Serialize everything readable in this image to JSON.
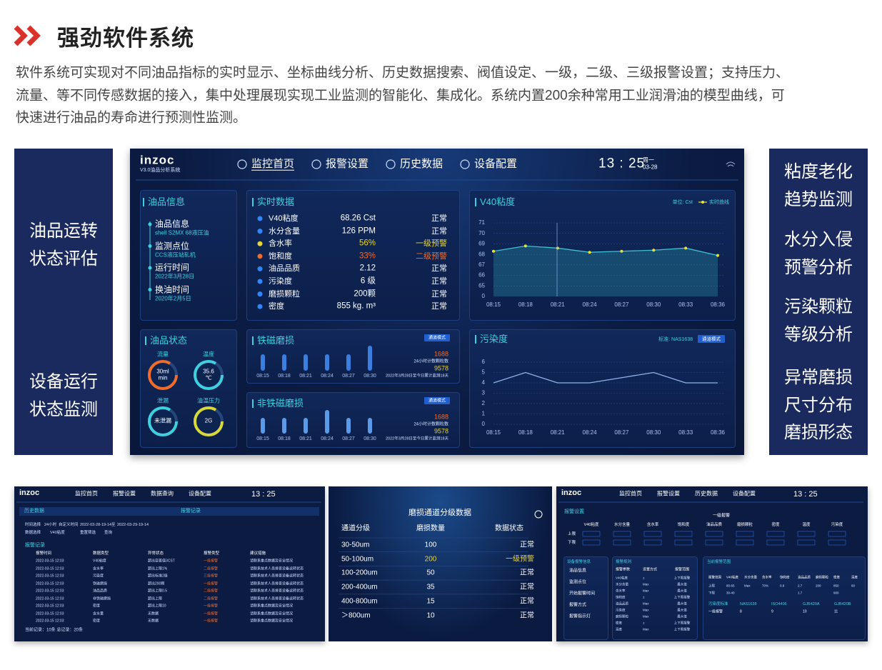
{
  "header": {
    "title": "强劲软件系统",
    "description": [
      "软件系统可实现对不同油品指标的实时显示、坐标曲线分析、历史数据搜索、阀值设定、一级，二级、三级报警设置；支持压力、",
      "流量、等不同传感数据的接入，集中处理展现实现工业监测的智能化、集成化。系统内置200余种常用工业润滑油的模型曲线，可",
      "快速进行油品的寿命进行预测性监测。"
    ]
  },
  "left_panel": {
    "items": [
      [
        "油品运转",
        "状态评估"
      ],
      [
        "设备运行",
        "状态监测"
      ]
    ]
  },
  "right_panel": {
    "items": [
      [
        "粘度老化",
        "趋势监测"
      ],
      [
        "水分入侵",
        "预警分析"
      ],
      [
        "污染颗粒",
        "等级分析"
      ],
      [
        "异常磨损",
        "尺寸分布",
        "磨损形态"
      ]
    ]
  },
  "dashboard": {
    "logo": "inzoc",
    "version": "V3.0油品分析系统",
    "nav": [
      "监控首页",
      "报警设置",
      "历史数据",
      "设备配置"
    ],
    "time": "13 : 25",
    "weekday": "周一",
    "date": "03-28",
    "oil_info": {
      "title": "油品信息",
      "entries": [
        {
          "label": "油品信息",
          "value": "shell S2MX 68液压油"
        },
        {
          "label": "监测点位",
          "value": "CCS液压站轧机"
        },
        {
          "label": "运行时间",
          "value": "2022年3月28日"
        },
        {
          "label": "换油时间",
          "value": "2020年2月5日"
        }
      ]
    },
    "realtime": {
      "title": "实时数据",
      "rows": [
        {
          "name": "V40粘度",
          "value": "68.26 Cst",
          "status": "正常",
          "dot_color": "#2f86ff",
          "text_color": "#ffffff"
        },
        {
          "name": "水分含量",
          "value": "126 PPM",
          "status": "正常",
          "dot_color": "#2f86ff",
          "text_color": "#ffffff"
        },
        {
          "name": "含水率",
          "value": "56%",
          "status": "一级预警",
          "dot_color": "#e6d33a",
          "text_color": "#e6d33a"
        },
        {
          "name": "饱和度",
          "value": "33%",
          "status": "二级预警",
          "dot_color": "#f26b2a",
          "text_color": "#f26b2a"
        },
        {
          "name": "油品品质",
          "value": "2.12",
          "status": "正常",
          "dot_color": "#2f86ff",
          "text_color": "#ffffff"
        },
        {
          "name": "污染度",
          "value": "6 级",
          "status": "正常",
          "dot_color": "#2f86ff",
          "text_color": "#ffffff"
        },
        {
          "name": "磨损颗粒",
          "value": "200颗",
          "status": "正常",
          "dot_color": "#2f86ff",
          "text_color": "#ffffff"
        },
        {
          "name": "密度",
          "value": "855 kg. m³",
          "status": "正常",
          "dot_color": "#2f86ff",
          "text_color": "#ffffff"
        }
      ]
    },
    "oil_status": {
      "title": "油品状态",
      "gauges": [
        {
          "label": "流量",
          "value": [
            "30ml",
            "min"
          ],
          "color": "#f26b2a"
        },
        {
          "label": "温度",
          "value": [
            "35.6",
            "℃"
          ],
          "color": "#3fd0e0"
        },
        {
          "label": "泄漏",
          "value": [
            "未泄漏"
          ],
          "color": "#3fd0e0"
        },
        {
          "label": "油温压力",
          "value": [
            "2G"
          ],
          "color": "#d8d83a"
        }
      ]
    }
  },
  "chart_data": [
    {
      "type": "line",
      "title": "V40粘度",
      "unit_label": "单位: Cst",
      "x": [
        "08:15",
        "08:18",
        "08:21",
        "08:24",
        "08:27",
        "08:30",
        "08:33",
        "08:36"
      ],
      "series": [
        {
          "name": "实时曲线",
          "color": "#e8e33a",
          "values": [
            68.3,
            68.8,
            68.6,
            68.2,
            68.3,
            68.4,
            68.6,
            67.9
          ]
        }
      ],
      "ylim": [
        64,
        71
      ],
      "yticks": [
        65,
        66,
        67,
        68,
        69,
        70,
        71
      ],
      "y_origin_label": "0",
      "grid": true
    },
    {
      "type": "line",
      "title": "污染度",
      "standard": "标准: NAS1638",
      "badge": "通道模式",
      "x": [
        "08:15",
        "08:18",
        "08:21",
        "08:24",
        "08:27",
        "08:30",
        "08:33",
        "08:36"
      ],
      "color": "#8fb3e6",
      "values": [
        4,
        5,
        4,
        4,
        4.5,
        5,
        4,
        4
      ],
      "ylim": [
        0,
        6
      ],
      "yticks": [
        0,
        1,
        2,
        3,
        4,
        5,
        6
      ],
      "grid": true
    },
    {
      "type": "bar",
      "title": "铁磁磨损",
      "badge": "通道模式",
      "categories": [
        "08:15",
        "08:18",
        "08:21",
        "08:24",
        "08:27",
        "08:30"
      ],
      "values": [
        23,
        23,
        23,
        23,
        23,
        35
      ],
      "color": "#3a7fe0",
      "count": 1688,
      "count_label": "24小时计数颗粒数",
      "total": 9578,
      "note": "2022年3月28日至今日累计监测18天"
    },
    {
      "type": "bar",
      "title": "非铁磁磨损",
      "badge": "通道模式",
      "categories": [
        "08:15",
        "08:18",
        "08:21",
        "08:24",
        "08:27",
        "08:30"
      ],
      "values": [
        22,
        22,
        22,
        33,
        22,
        22
      ],
      "color": "#5a9ae8",
      "count": 1688,
      "count_label": "24小时计数颗粒数",
      "total": 9578,
      "note": "2022年3月28日至今日累计监测18天"
    }
  ],
  "history_screen": {
    "logo": "inzoc",
    "nav": [
      "监控首页",
      "报警设置",
      "数据查询",
      "设备配置"
    ],
    "time": "13 : 25",
    "section_title": "历史数据",
    "tab_title": "报警记录",
    "filter_time": [
      "时间选择",
      "24小时",
      "自定义时间",
      "2022-03-28-19-14",
      "至",
      "2022-03-29-19-14"
    ],
    "filter_data": [
      "数据选择",
      "V40粘度",
      "重置筛选",
      "查询"
    ],
    "record_title": "报警记录",
    "columns": [
      "报警时间",
      "数据类型",
      "异常状态",
      "报警类型",
      "建议措施"
    ],
    "rows": [
      [
        "2022-03-15 12:03",
        "V40粘度",
        "超出容差值3CST",
        "一级报警",
        "请联系重点数据及安全情况"
      ],
      [
        "2022-03-15 12:03",
        "含水率",
        "超出上限1%",
        "二级报警",
        "请联系技术人员排查设备运转状态"
      ],
      [
        "2022-03-15 12:03",
        "污染度",
        "超出标准2级",
        "三级报警",
        "请联系技术人员排查设备运转状态"
      ],
      [
        "2022-03-15 12:03",
        "铁磁磨损",
        "超出200颗",
        "一级报警",
        "请联系技术人员排查设备运转状态"
      ],
      [
        "2022-03-15 12:03",
        "油品品质",
        "超出上限0.5",
        "二级报警",
        "请联系技术人员排查设备运转状态"
      ],
      [
        "2022-03-15 12:03",
        "非铁磁磨损",
        "超出上限",
        "二级报警",
        "请联系技术人员排查设备运转状态"
      ],
      [
        "2022-03-15 12:03",
        "密度",
        "超出上限10",
        "一级报警",
        "请联系重点数据及安全情况"
      ],
      [
        "2022-03-15 12:03",
        "含水量",
        "无数据",
        "一级报警",
        "请联系重点数据及安全情况"
      ],
      [
        "2022-03-15 12:03",
        "密度",
        "无数据",
        "一级报警",
        "请联系重点数据及安全情况"
      ]
    ],
    "footer": "当前记录：10条    总记录：20条"
  },
  "wear_screen": {
    "title": "磨损通道分级数据",
    "columns": [
      "通道分级",
      "磨损数量",
      "数据状态"
    ],
    "rows": [
      [
        "30-50um",
        "100",
        "正常"
      ],
      [
        "50-100um",
        "200",
        "一级预警"
      ],
      [
        "100-200um",
        "50",
        "正常"
      ],
      [
        "200-400um",
        "35",
        "正常"
      ],
      [
        "400-800um",
        "15",
        "正常"
      ],
      [
        "＞800um",
        "10",
        "正常"
      ]
    ]
  },
  "alarm_screen": {
    "logo": "inzoc",
    "nav": [
      "监控首页",
      "报警设置",
      "历史数据",
      "设备配置"
    ],
    "time": "13 : 25",
    "title": "报警设置",
    "level": "一级报警",
    "columns": [
      "V40粘度",
      "水分含量",
      "含水率",
      "饱和度",
      "油品品质",
      "磨损颗粒",
      "密度",
      "温度",
      "污染度"
    ],
    "row_labels": [
      "上限",
      "下限"
    ],
    "device_title": "设备报警信息",
    "device_entries": [
      "油品信息",
      "监测点位",
      "开始报警时间",
      "报警方式",
      "报警指示灯"
    ],
    "rule_title": "报警规则",
    "rule_columns": [
      "报警参数",
      "设置方式",
      "报警范围"
    ],
    "rules": [
      [
        "V40粘度",
        "±",
        "上下限报警"
      ],
      [
        "水分含量",
        "Max",
        "最大值"
      ],
      [
        "含水率",
        "Max",
        "最大值"
      ],
      [
        "饱和度",
        "±",
        "上下限报警"
      ],
      [
        "油品品质",
        "Max",
        "最大值"
      ],
      [
        "污染度",
        "Max",
        "最大值"
      ],
      [
        "磨损颗粒",
        "Max",
        "最大值"
      ],
      [
        "密度",
        "±",
        "上下限报警"
      ],
      [
        "温度",
        "Max",
        "上下限报警"
      ]
    ],
    "current_title": "当前报警范围",
    "current_columns": [
      "报警范围",
      "V40粘度",
      "水分含量",
      "含水率",
      "饱和度",
      "油品品质",
      "磨损颗粒",
      "密度",
      "温度"
    ],
    "current_rows": [
      [
        "上限",
        "80-65",
        "Max",
        "70%",
        "0.8",
        "2.7",
        "200",
        "850",
        "60"
      ],
      [
        "下限",
        "30-40",
        "",
        "",
        "",
        "1.7",
        "",
        "900",
        ""
      ]
    ],
    "standard_row": [
      "污染度标准",
      "NAS1638",
      "ISO4406",
      "GJB420A",
      "GJB420B"
    ],
    "standard_levels": [
      "一级报警",
      "8",
      "9",
      "10",
      "11"
    ]
  }
}
